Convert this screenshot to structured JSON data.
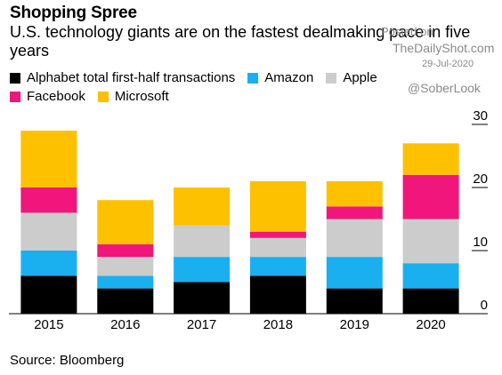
{
  "title": "Shopping Spree",
  "subtitle": "U.S. technology giants are on the fastest dealmaking pace in five years",
  "source": "Source: Bloomberg",
  "watermark": {
    "line1": "Posted on",
    "line2": "TheDailyShot.com",
    "line3": "29-Jul-2020",
    "line4": "@SoberLook"
  },
  "colors": {
    "Alphabet": "#000000",
    "Amazon": "#1ab0f0",
    "Apple": "#cccccc",
    "Facebook": "#f0167c",
    "Microsoft": "#fdc100"
  },
  "legend": [
    {
      "key": "Alphabet",
      "label": "Alphabet total first-half transactions"
    },
    {
      "key": "Amazon",
      "label": "Amazon"
    },
    {
      "key": "Apple",
      "label": "Apple"
    },
    {
      "key": "Facebook",
      "label": "Facebook"
    },
    {
      "key": "Microsoft",
      "label": "Microsoft"
    }
  ],
  "chart_data": {
    "type": "bar",
    "stacked": true,
    "categories": [
      "2015",
      "2016",
      "2017",
      "2018",
      "2019",
      "2020"
    ],
    "series": [
      {
        "name": "Alphabet",
        "values": [
          6,
          4,
          5,
          6,
          4,
          4
        ]
      },
      {
        "name": "Amazon",
        "values": [
          4,
          2,
          4,
          3,
          5,
          4
        ]
      },
      {
        "name": "Apple",
        "values": [
          6,
          3,
          5,
          3,
          6,
          7
        ]
      },
      {
        "name": "Facebook",
        "values": [
          4,
          2,
          0,
          1,
          2,
          7
        ]
      },
      {
        "name": "Microsoft",
        "values": [
          9,
          7,
          6,
          8,
          4,
          5
        ]
      }
    ],
    "yticks": [
      0,
      10,
      20,
      30
    ],
    "ylim": [
      0,
      30
    ],
    "y_axis_side": "right",
    "grid": false
  }
}
